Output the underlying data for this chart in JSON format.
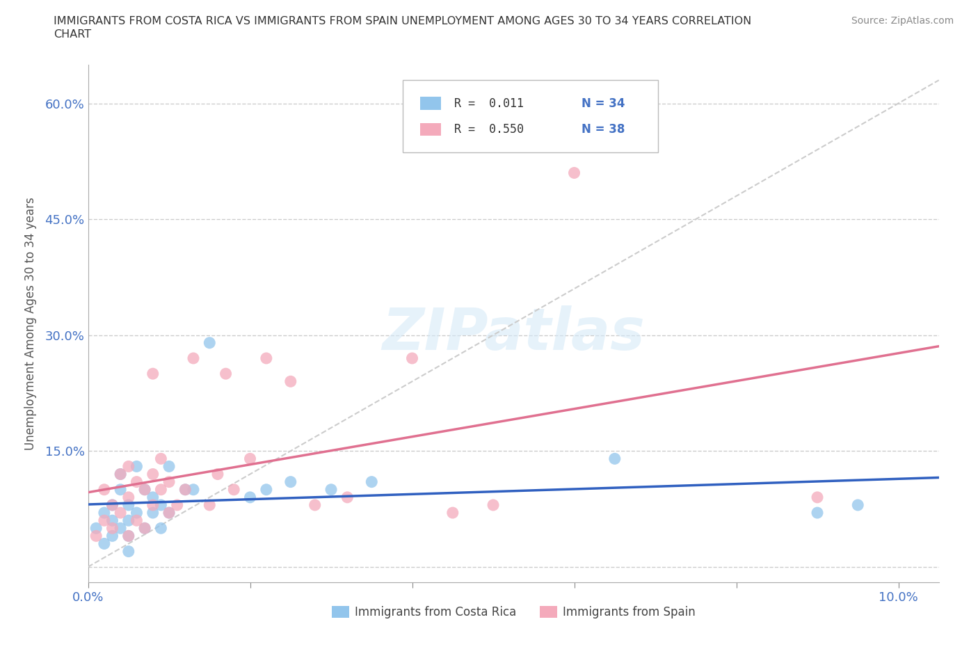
{
  "title_line1": "IMMIGRANTS FROM COSTA RICA VS IMMIGRANTS FROM SPAIN UNEMPLOYMENT AMONG AGES 30 TO 34 YEARS CORRELATION",
  "title_line2": "CHART",
  "source": "Source: ZipAtlas.com",
  "ylabel": "Unemployment Among Ages 30 to 34 years",
  "xlim": [
    0.0,
    0.105
  ],
  "ylim": [
    -0.02,
    0.65
  ],
  "yticks": [
    0.0,
    0.15,
    0.3,
    0.45,
    0.6
  ],
  "ytick_labels": [
    "",
    "15.0%",
    "30.0%",
    "45.0%",
    "60.0%"
  ],
  "xticks": [
    0.0,
    0.02,
    0.04,
    0.06,
    0.08,
    0.1
  ],
  "xtick_labels": [
    "0.0%",
    "",
    "",
    "",
    "",
    "10.0%"
  ],
  "costa_rica_color": "#92C5EC",
  "spain_color": "#F4AABB",
  "cr_line_color": "#3060C0",
  "sp_line_color": "#E07090",
  "diag_color": "#CCCCCC",
  "legend_r1": "R =  0.011",
  "legend_n1": "N = 34",
  "legend_r2": "R =  0.550",
  "legend_n2": "N = 38",
  "legend_color_blue": "#4472C4",
  "legend_color_pink": "#E07090",
  "watermark": "ZIPatlas",
  "watermark_color": "#D6EAF8",
  "costa_rica_x": [
    0.001,
    0.002,
    0.002,
    0.003,
    0.003,
    0.003,
    0.004,
    0.004,
    0.004,
    0.005,
    0.005,
    0.005,
    0.005,
    0.006,
    0.006,
    0.007,
    0.007,
    0.008,
    0.008,
    0.009,
    0.009,
    0.01,
    0.01,
    0.012,
    0.013,
    0.015,
    0.02,
    0.022,
    0.025,
    0.03,
    0.035,
    0.065,
    0.09,
    0.095
  ],
  "costa_rica_y": [
    0.05,
    0.03,
    0.07,
    0.04,
    0.06,
    0.08,
    0.05,
    0.1,
    0.12,
    0.04,
    0.06,
    0.08,
    0.02,
    0.07,
    0.13,
    0.05,
    0.1,
    0.07,
    0.09,
    0.05,
    0.08,
    0.07,
    0.13,
    0.1,
    0.1,
    0.29,
    0.09,
    0.1,
    0.11,
    0.1,
    0.11,
    0.14,
    0.07,
    0.08
  ],
  "spain_x": [
    0.001,
    0.002,
    0.002,
    0.003,
    0.003,
    0.004,
    0.004,
    0.005,
    0.005,
    0.005,
    0.006,
    0.006,
    0.007,
    0.007,
    0.008,
    0.008,
    0.008,
    0.009,
    0.009,
    0.01,
    0.01,
    0.011,
    0.012,
    0.013,
    0.015,
    0.016,
    0.017,
    0.018,
    0.02,
    0.022,
    0.025,
    0.028,
    0.032,
    0.04,
    0.045,
    0.05,
    0.06,
    0.09
  ],
  "spain_y": [
    0.04,
    0.06,
    0.1,
    0.05,
    0.08,
    0.07,
    0.12,
    0.04,
    0.09,
    0.13,
    0.06,
    0.11,
    0.05,
    0.1,
    0.08,
    0.12,
    0.25,
    0.1,
    0.14,
    0.07,
    0.11,
    0.08,
    0.1,
    0.27,
    0.08,
    0.12,
    0.25,
    0.1,
    0.14,
    0.27,
    0.24,
    0.08,
    0.09,
    0.27,
    0.07,
    0.08,
    0.51,
    0.09
  ]
}
